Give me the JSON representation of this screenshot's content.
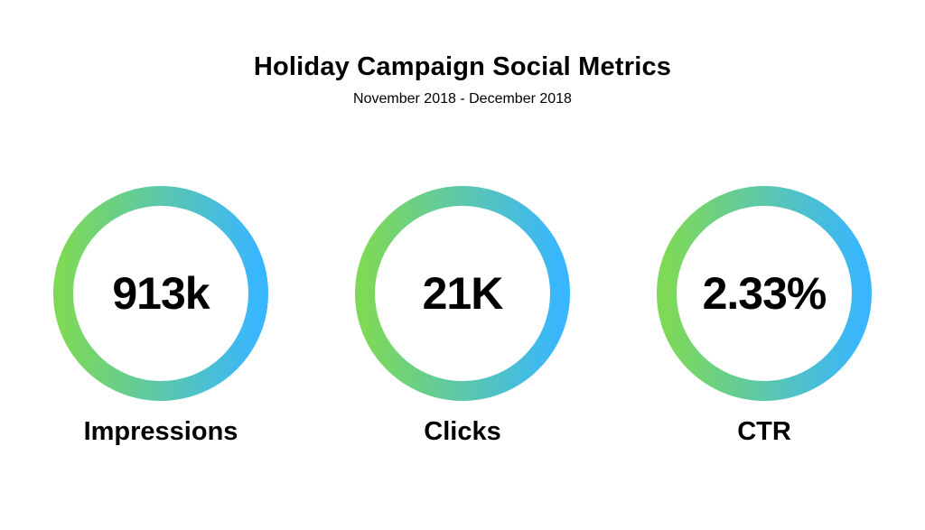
{
  "header": {
    "title": "Holiday Campaign Social Metrics",
    "subtitle": "November 2018 - December 2018"
  },
  "metrics": [
    {
      "value": "913k",
      "label": "Impressions"
    },
    {
      "value": "21K",
      "label": "Clicks"
    },
    {
      "value": "2.33%",
      "label": "CTR"
    }
  ],
  "colors": {
    "ring_gradient_start": "#7ed957",
    "ring_gradient_end": "#38b6ff",
    "text": "#000000",
    "background": "#ffffff"
  }
}
